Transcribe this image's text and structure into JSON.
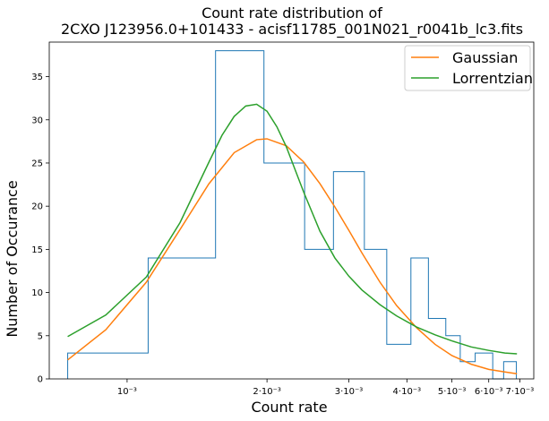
{
  "chart_data": {
    "type": "histogram",
    "title": [
      "Count rate distribution of",
      "2CXO J123956.0+101433 - acisf11785_001N021_r0041b_lc3.fits"
    ],
    "xlabel": "Count rate",
    "ylabel": "Number of Occurance",
    "xscale": "log",
    "xlim": [
      0.00068,
      0.0075
    ],
    "ylim": [
      0,
      39
    ],
    "x_ticks": [
      {
        "value": 0.001,
        "label": "10⁻³"
      },
      {
        "value": 0.002,
        "label": "2·10⁻³"
      },
      {
        "value": 0.003,
        "label": "3·10⁻³"
      },
      {
        "value": 0.004,
        "label": "4·10⁻³"
      },
      {
        "value": 0.005,
        "label": "5·10⁻³"
      },
      {
        "value": 0.006,
        "label": "6·10⁻³"
      },
      {
        "value": 0.007,
        "label": "7·10⁻³"
      }
    ],
    "y_ticks": [
      0,
      5,
      10,
      15,
      20,
      25,
      30,
      35
    ],
    "histogram": {
      "color": "#1f77b4",
      "bin_edges": [
        0.000745,
        0.00111,
        0.00155,
        0.00197,
        0.00241,
        0.00278,
        0.00324,
        0.00362,
        0.00408,
        0.00445,
        0.00485,
        0.00521,
        0.00561,
        0.00612,
        0.00646,
        0.00688
      ],
      "counts": [
        3,
        14,
        38,
        25,
        15,
        24,
        15,
        4,
        14,
        7,
        5,
        2,
        3,
        0,
        2
      ]
    },
    "series": [
      {
        "name": "Gaussian",
        "color": "#ff7f0e",
        "x": [
          0.000745,
          0.0009,
          0.0011,
          0.0013,
          0.0015,
          0.0017,
          0.0019,
          0.002,
          0.0022,
          0.0024,
          0.0026,
          0.0028,
          0.003,
          0.0032,
          0.0035,
          0.0038,
          0.0042,
          0.0046,
          0.005,
          0.0055,
          0.006,
          0.0065,
          0.0069
        ],
        "y": [
          2.2,
          5.7,
          11.2,
          17.3,
          22.6,
          26.2,
          27.7,
          27.8,
          27.0,
          25.1,
          22.6,
          19.9,
          17.2,
          14.6,
          11.2,
          8.5,
          5.9,
          4.0,
          2.7,
          1.7,
          1.1,
          0.8,
          0.6
        ]
      },
      {
        "name": "Lorrentzian",
        "color": "#2ca02c",
        "x": [
          0.000745,
          0.0009,
          0.0011,
          0.0013,
          0.0015,
          0.0016,
          0.0017,
          0.0018,
          0.0019,
          0.002,
          0.0021,
          0.0022,
          0.0024,
          0.0026,
          0.0028,
          0.003,
          0.0032,
          0.0035,
          0.0038,
          0.0042,
          0.0046,
          0.005,
          0.0055,
          0.006,
          0.0065,
          0.0069
        ],
        "y": [
          4.9,
          7.4,
          11.8,
          18.1,
          25.1,
          28.2,
          30.4,
          31.6,
          31.8,
          31.0,
          29.2,
          26.9,
          21.6,
          17.1,
          14.0,
          11.9,
          10.3,
          8.6,
          7.3,
          6.0,
          5.1,
          4.4,
          3.7,
          3.3,
          3.0,
          2.9
        ]
      }
    ],
    "legend": {
      "position": "top-right"
    }
  }
}
